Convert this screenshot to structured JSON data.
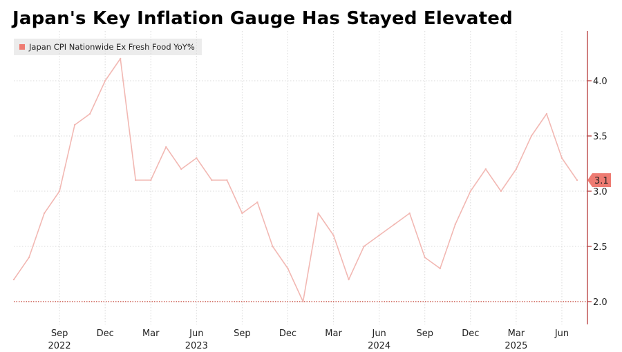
{
  "title": "Japan's Key Inflation Gauge Has Stayed Elevated",
  "chart_data": {
    "type": "line",
    "title": "Japan's Key Inflation Gauge Has Stayed Elevated",
    "xlabel": "",
    "ylabel": "",
    "ylim": [
      1.8,
      4.4
    ],
    "y_ticks": [
      2.0,
      2.5,
      3.0,
      3.5,
      4.0
    ],
    "y_tick_labels": [
      "2.0",
      "2.5",
      "3.0",
      "3.5",
      "4.0"
    ],
    "reference_line": 2.0,
    "grid": true,
    "legend_position": "top-left",
    "x_tick_labels": [
      "Sep",
      "Dec",
      "Mar",
      "Jun",
      "Sep",
      "Dec",
      "Mar",
      "Jun",
      "Sep",
      "Dec",
      "Mar",
      "Jun"
    ],
    "x_tick_months": [
      "2022-09",
      "2022-12",
      "2023-03",
      "2023-06",
      "2023-09",
      "2023-12",
      "2024-03",
      "2024-06",
      "2024-09",
      "2024-12",
      "2025-03",
      "2025-06"
    ],
    "year_labels": [
      "2022",
      "2023",
      "2024",
      "2025"
    ],
    "year_label_months": [
      "2022-09",
      "2023-06",
      "2024-06",
      "2025-03"
    ],
    "last_value_label": "3.1",
    "series": [
      {
        "name": "Japan CPI Nationwide Ex Fresh Food YoY%",
        "color": "#f2b8b3",
        "x": [
          "2022-06",
          "2022-07",
          "2022-08",
          "2022-09",
          "2022-10",
          "2022-11",
          "2022-12",
          "2023-01",
          "2023-02",
          "2023-03",
          "2023-04",
          "2023-05",
          "2023-06",
          "2023-07",
          "2023-08",
          "2023-09",
          "2023-10",
          "2023-11",
          "2023-12",
          "2024-01",
          "2024-02",
          "2024-03",
          "2024-04",
          "2024-05",
          "2024-06",
          "2024-07",
          "2024-08",
          "2024-09",
          "2024-10",
          "2024-11",
          "2024-12",
          "2025-01",
          "2025-02",
          "2025-03",
          "2025-04",
          "2025-05",
          "2025-06",
          "2025-07"
        ],
        "values": [
          2.2,
          2.4,
          2.8,
          3.0,
          3.6,
          3.7,
          4.0,
          4.2,
          3.1,
          3.1,
          3.4,
          3.2,
          3.3,
          3.1,
          3.1,
          2.8,
          2.9,
          2.5,
          2.3,
          2.0,
          2.8,
          2.6,
          2.2,
          2.5,
          2.6,
          2.7,
          2.8,
          2.4,
          2.3,
          2.7,
          3.0,
          3.2,
          3.0,
          3.2,
          3.5,
          3.7,
          3.3,
          3.1
        ]
      }
    ]
  },
  "colors": {
    "line": "#f2b8b3",
    "axis": "#b02a2a",
    "grid": "#d9d9d9",
    "reference": "#c0392b",
    "last_value_badge": "#ee7b72",
    "legend_bg": "#ececec"
  }
}
